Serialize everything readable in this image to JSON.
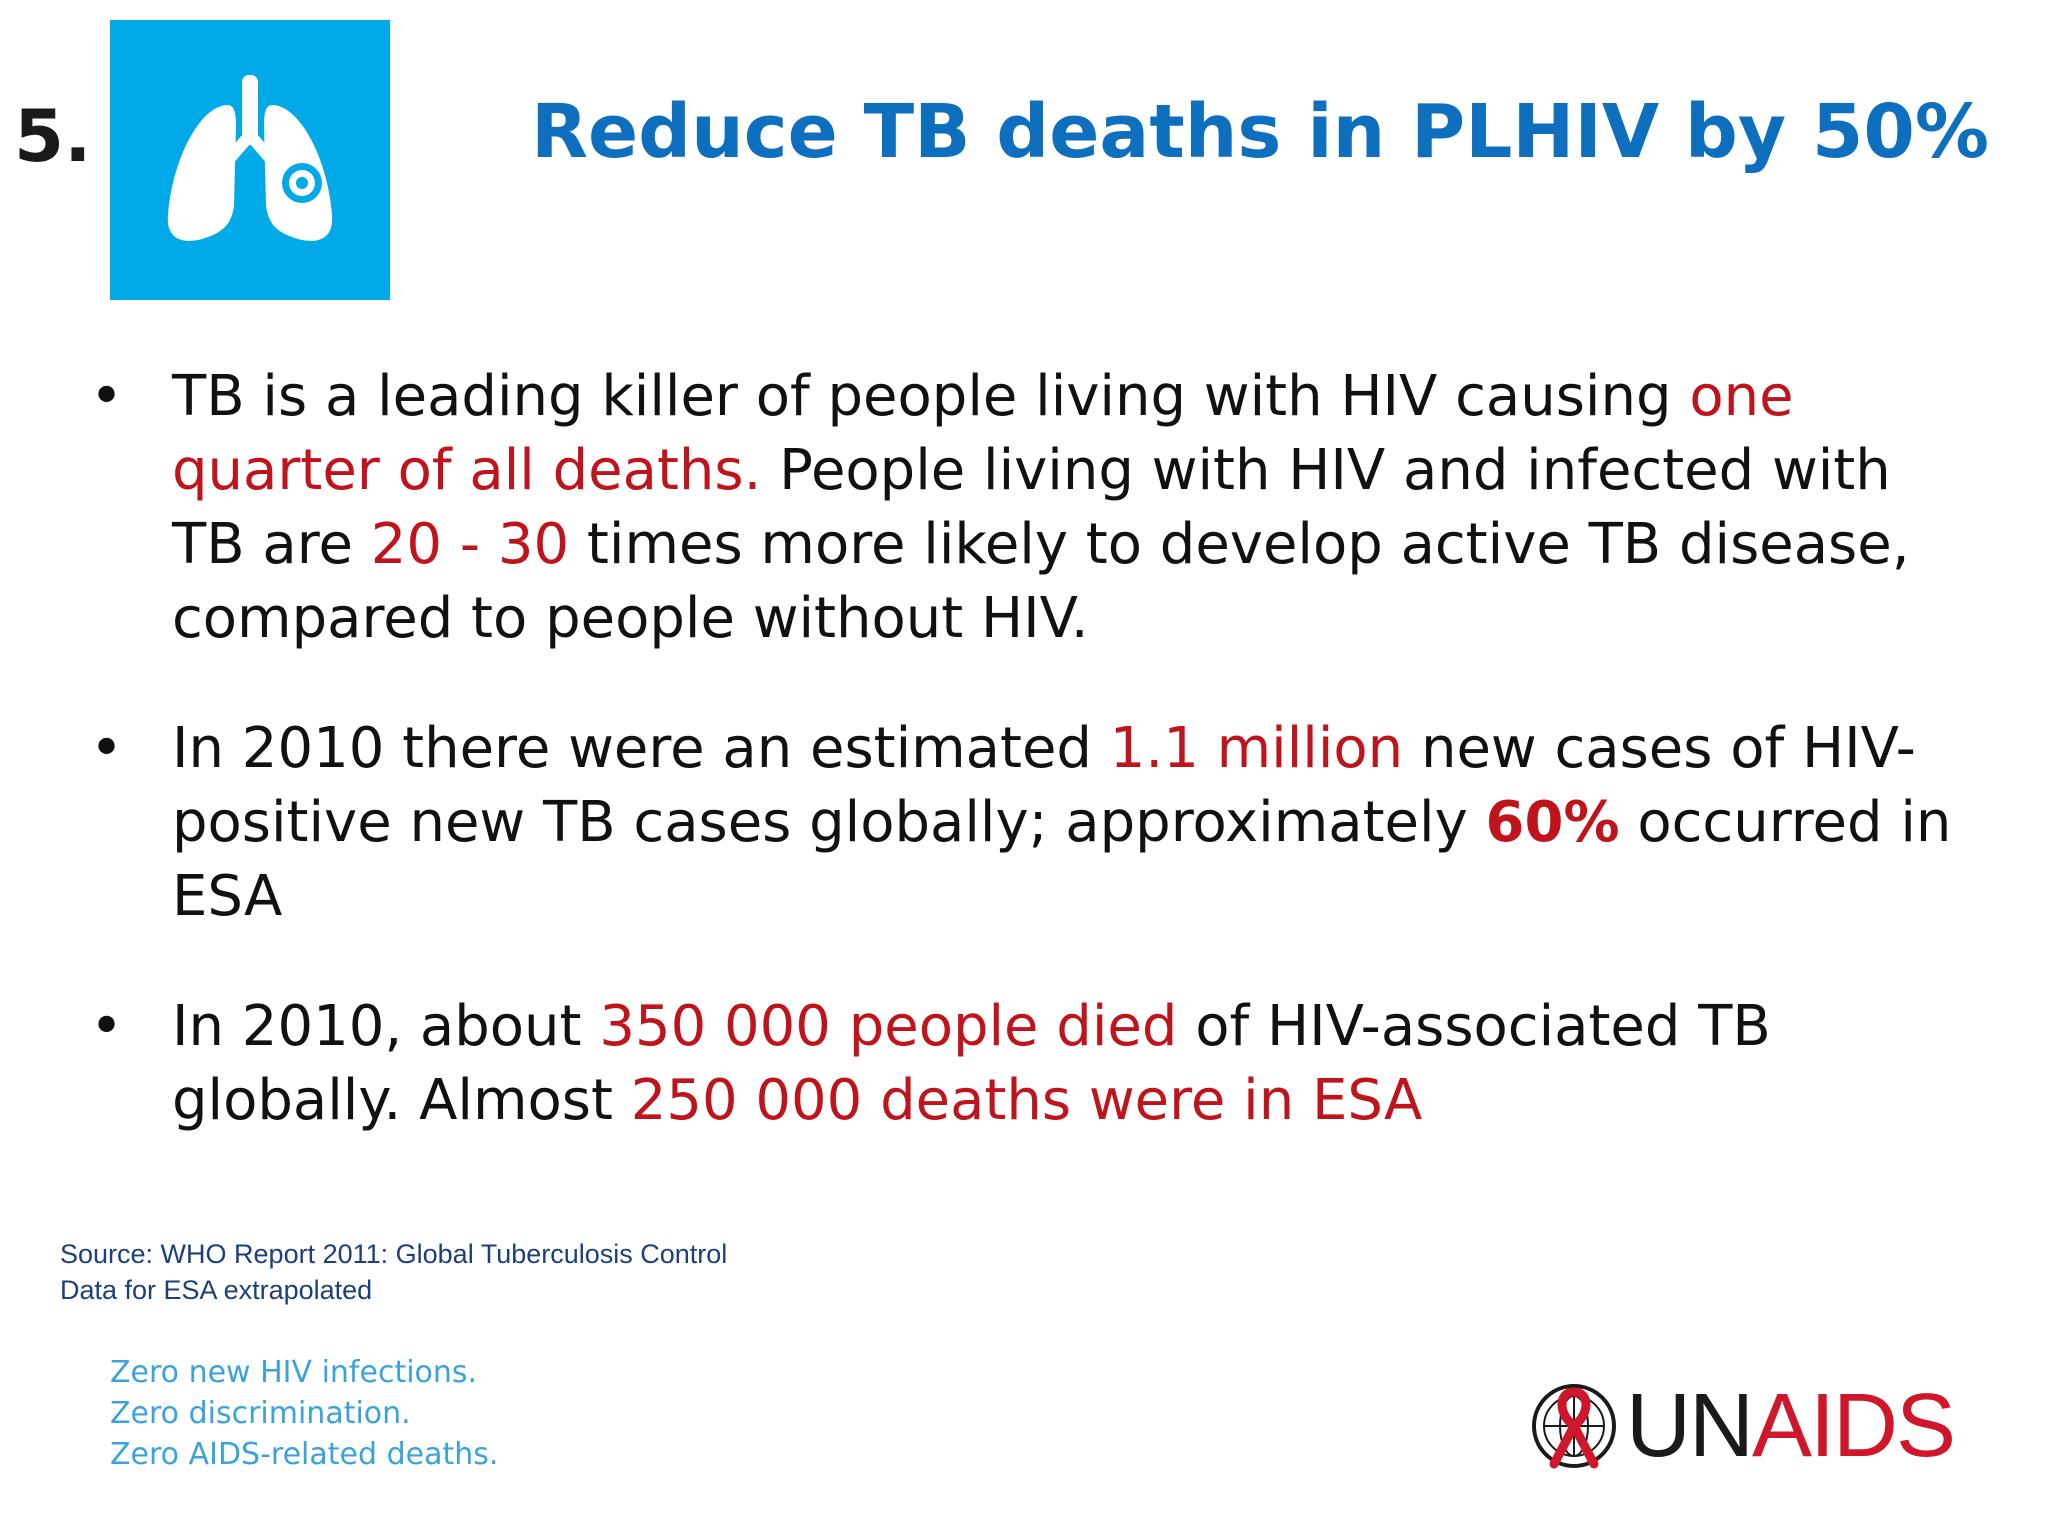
{
  "slide": {
    "number": "5.",
    "title": "Reduce TB deaths in PLHIV by 50%",
    "icon": "lungs-icon",
    "icon_bg_color": "#00a9e8"
  },
  "bullets": [
    {
      "segments": [
        {
          "text": "TB is a leading killer of people living with HIV causing ",
          "style": "normal"
        },
        {
          "text": "one quarter of all deaths.",
          "style": "highlight"
        },
        {
          "text": " People living with HIV and infected with TB are ",
          "style": "normal"
        },
        {
          "text": "20 - 30",
          "style": "highlight"
        },
        {
          "text": " times more likely to develop active TB disease, compared to people without HIV.",
          "style": "normal"
        }
      ]
    },
    {
      "segments": [
        {
          "text": "In 2010 there were an estimated ",
          "style": "normal"
        },
        {
          "text": "1.1 million",
          "style": "highlight"
        },
        {
          "text": " new cases of HIV-positive new TB cases globally; approximately ",
          "style": "normal"
        },
        {
          "text": "60%",
          "style": "highlight-bold"
        },
        {
          "text": " occurred in ESA",
          "style": "normal"
        }
      ]
    },
    {
      "segments": [
        {
          "text": "In 2010, about ",
          "style": "normal"
        },
        {
          "text": "350 000 people died",
          "style": "highlight"
        },
        {
          "text": " of HIV-associated TB globally. Almost ",
          "style": "normal"
        },
        {
          "text": "250 000 deaths were in ESA",
          "style": "highlight"
        }
      ]
    }
  ],
  "source": {
    "line1": "Source:  WHO Report 2011: Global Tuberculosis Control",
    "line2": "Data for ESA extrapolated"
  },
  "tagline": {
    "line1": "Zero new HIV infections.",
    "line2": "Zero discrimination.",
    "line3": "Zero AIDS-related deaths."
  },
  "logo": {
    "part1": "UN",
    "part2": "AIDS",
    "emblem": "un-emblem-ribbon-icon"
  },
  "colors": {
    "title": "#0d6fbd",
    "highlight": "#c0141c",
    "source": "#1d3f7a",
    "tagline": "#3ba3dc",
    "logo_red": "#d0162a"
  }
}
